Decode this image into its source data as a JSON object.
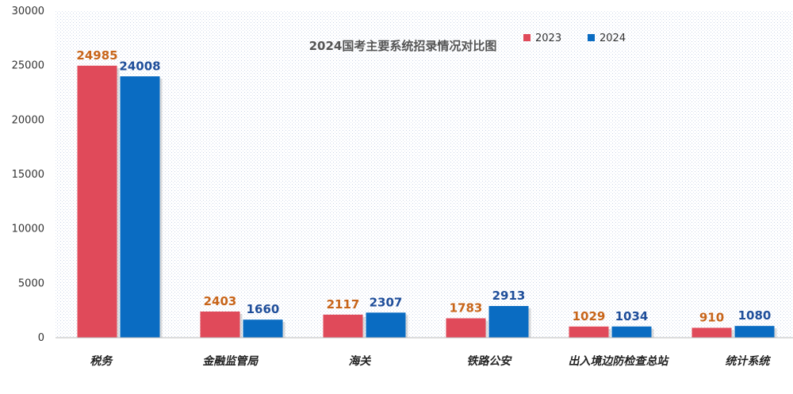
{
  "chart_data": {
    "type": "bar",
    "title": "2024国考主要系统招录情况对比图",
    "categories": [
      "税务",
      "金融监管局",
      "海关",
      "铁路公安",
      "出入境边防检查总站",
      "统计系统"
    ],
    "series": [
      {
        "name": "2023",
        "values": [
          24985,
          2403,
          2117,
          1783,
          1029,
          910
        ],
        "color": "#E04A5A",
        "label_color": "#C8651A"
      },
      {
        "name": "2024",
        "values": [
          24008,
          1660,
          2307,
          2913,
          1034,
          1080
        ],
        "color": "#0A6CC2",
        "label_color": "#1F4E9A"
      }
    ],
    "ylim": [
      0,
      30000
    ],
    "yticks": [
      0,
      5000,
      10000,
      15000,
      20000,
      25000,
      30000
    ],
    "grid": false,
    "background": "dotted",
    "legend_position": "top"
  }
}
